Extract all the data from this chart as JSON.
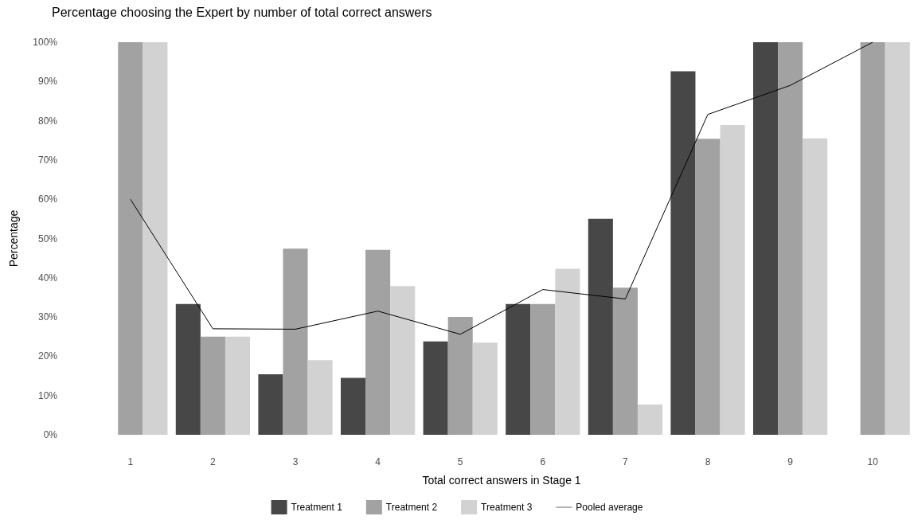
{
  "chart_data": {
    "type": "bar",
    "title": "Percentage choosing the Expert by number of total correct answers",
    "xlabel": "Total correct answers in Stage 1",
    "ylabel": "Percentage",
    "categories": [
      "1",
      "2",
      "3",
      "4",
      "5",
      "6",
      "7",
      "8",
      "9",
      "10"
    ],
    "series": [
      {
        "name": "Treatment 1",
        "color": "#474747",
        "values": [
          null,
          33.3,
          15.4,
          14.5,
          23.8,
          33.3,
          55,
          92.6,
          100,
          null
        ]
      },
      {
        "name": "Treatment 2",
        "color": "#a2a2a2",
        "values": [
          100,
          25,
          47.4,
          47.1,
          30,
          33.3,
          37.5,
          75.4,
          100,
          100
        ]
      },
      {
        "name": "Treatment 3",
        "color": "#d2d2d2",
        "values": [
          100,
          25,
          19,
          37.9,
          23.5,
          42.3,
          7.7,
          78.9,
          75.5,
          100
        ]
      },
      {
        "name": "Pooled average",
        "type": "line",
        "color": "#000000",
        "values": [
          60,
          27,
          26.9,
          31.5,
          25.6,
          37,
          34.6,
          81.6,
          89,
          100
        ]
      }
    ],
    "ylim": [
      0,
      100
    ],
    "yticks": [
      {
        "value": 0,
        "label": "0%"
      },
      {
        "value": 10,
        "label": "10%"
      },
      {
        "value": 20,
        "label": "20%"
      },
      {
        "value": 30,
        "label": "30%"
      },
      {
        "value": 40,
        "label": "40%"
      },
      {
        "value": 50,
        "label": "50%"
      },
      {
        "value": 60,
        "label": "60%"
      },
      {
        "value": 70,
        "label": "70%"
      },
      {
        "value": 80,
        "label": "80%"
      },
      {
        "value": 90,
        "label": "90%"
      },
      {
        "value": 100,
        "label": "100%"
      }
    ],
    "grid": false,
    "legend": "bottom",
    "marker": "none",
    "line_style": "solid"
  }
}
